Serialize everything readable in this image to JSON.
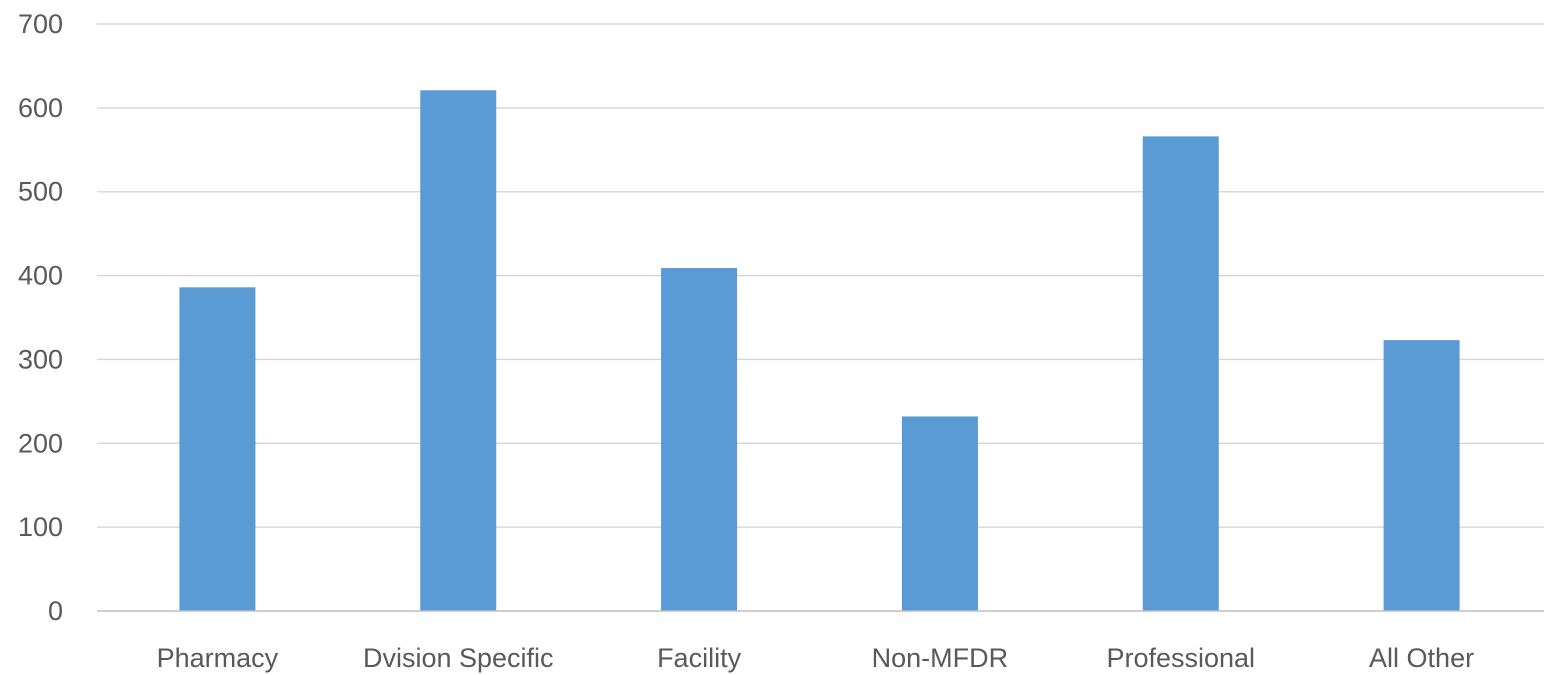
{
  "chart_data": {
    "type": "bar",
    "title": "",
    "xlabel": "",
    "ylabel": "",
    "categories": [
      "Pharmacy",
      "Dvision Specific",
      "Facility",
      "Non-MFDR",
      "Professional",
      "All Other"
    ],
    "values": [
      386,
      621,
      409,
      232,
      566,
      323
    ],
    "ylim": [
      0,
      700
    ],
    "yticks": [
      0,
      100,
      200,
      300,
      400,
      500,
      600,
      700
    ],
    "grid": true,
    "legend": "none",
    "bar_color": "#5b9bd5"
  }
}
